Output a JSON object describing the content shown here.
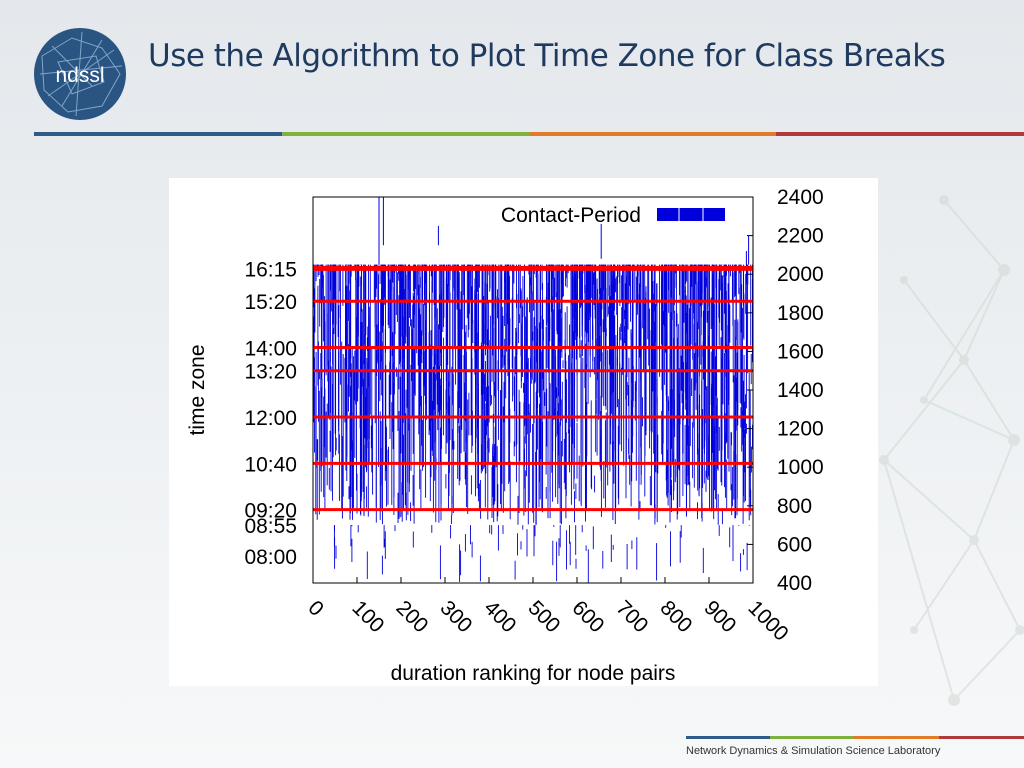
{
  "slide": {
    "title": "Use the Algorithm to Plot Time Zone for Class Breaks",
    "logo_text": "ndssl",
    "footer": "Network Dynamics & Simulation Science Laboratory",
    "accent_colors": [
      "#2e5b8a",
      "#7fb13f",
      "#e07b2a",
      "#b03a3a"
    ]
  },
  "chart_data": {
    "type": "scatter",
    "title": "",
    "xlabel": "duration ranking for node pairs",
    "ylabel_left": "time zone",
    "ylabel_right": "",
    "legend": {
      "label": "Contact-Period",
      "placement": "top-right"
    },
    "xlim": [
      0,
      1000
    ],
    "ylim": [
      400,
      2400
    ],
    "x_ticks": [
      "0",
      "100",
      "200",
      "300",
      "400",
      "500",
      "600",
      "700",
      "800",
      "900",
      "1000"
    ],
    "y_ticks_right": [
      "400",
      "600",
      "800",
      "1000",
      "1200",
      "1400",
      "1600",
      "1800",
      "2000",
      "2200",
      "2400"
    ],
    "class_breaks": [
      {
        "label": "16:15",
        "y": 2030
      },
      {
        "label": "15:20",
        "y": 1860
      },
      {
        "label": "14:00",
        "y": 1620
      },
      {
        "label": "13:20",
        "y": 1500
      },
      {
        "label": "12:00",
        "y": 1260
      },
      {
        "label": "10:40",
        "y": 1020
      },
      {
        "label": "09:20",
        "y": 780
      }
    ],
    "extra_time_labels": [
      {
        "label": "08:55",
        "y": 700
      },
      {
        "label": "08:00",
        "y": 540
      }
    ],
    "series_color": "#0000dd",
    "break_color": "#ff0000",
    "dense_band": [
      700,
      2050
    ],
    "sparse_band": [
      400,
      700
    ]
  }
}
